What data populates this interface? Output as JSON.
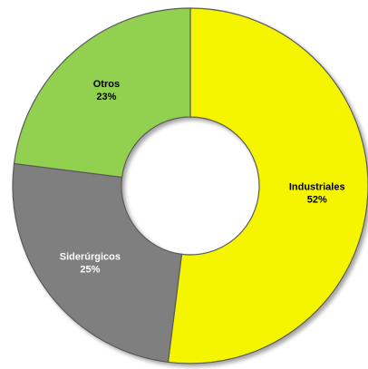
{
  "chart_data": {
    "type": "donut",
    "categories": [
      "Industriales",
      "Siderúrgicos",
      "Otros"
    ],
    "values": [
      52,
      25,
      23
    ],
    "value_labels": [
      "52%",
      "25%",
      "23%"
    ],
    "colors": [
      "#f5f500",
      "#7f7f7f",
      "#92d050"
    ],
    "label_colors": [
      "#000000",
      "#ffffff",
      "#000000"
    ]
  }
}
